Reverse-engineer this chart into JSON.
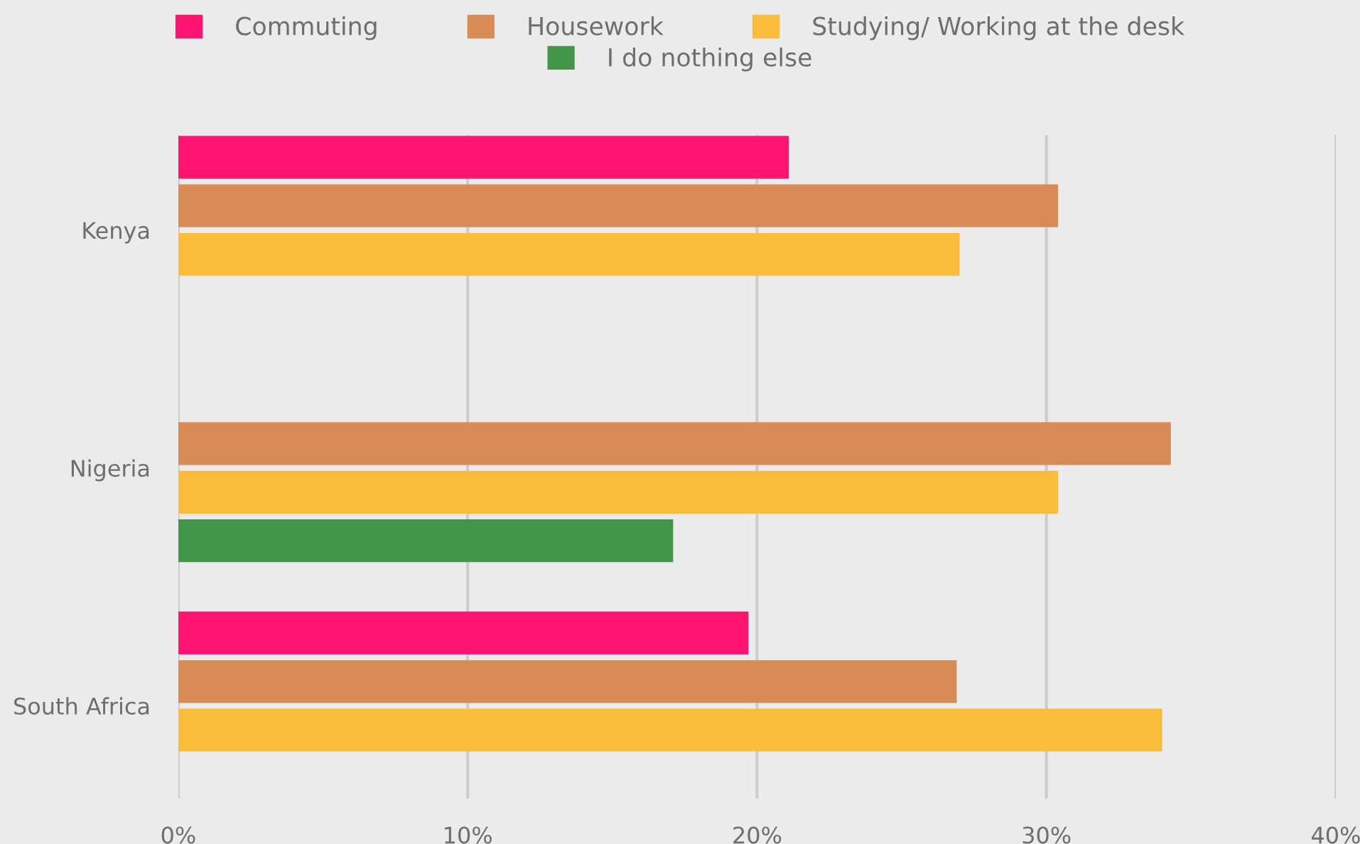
{
  "chart_data": {
    "type": "bar",
    "orientation": "horizontal",
    "categories": [
      "Kenya",
      "Nigeria",
      "South Africa"
    ],
    "series": [
      {
        "name": "Commuting",
        "color": "#ff1472",
        "values": [
          21.1,
          null,
          19.7
        ]
      },
      {
        "name": "Housework",
        "color": "#d98b56",
        "values": [
          30.4,
          34.3,
          26.9
        ]
      },
      {
        "name": "Studying/ Working at the desk",
        "color": "#fbbb3b",
        "values": [
          27.0,
          30.4,
          34.0
        ]
      },
      {
        "name": "I do nothing else",
        "color": "#43954a",
        "values": [
          null,
          17.1,
          null
        ]
      }
    ],
    "xlim": [
      0,
      40
    ],
    "xticks": [
      {
        "value": 0,
        "label": "0%"
      },
      {
        "value": 10,
        "label": "10%"
      },
      {
        "value": 20,
        "label": "20%"
      },
      {
        "value": 30,
        "label": "30%"
      },
      {
        "value": 40,
        "label": "40%"
      }
    ],
    "grid": "x",
    "legend": "top"
  }
}
